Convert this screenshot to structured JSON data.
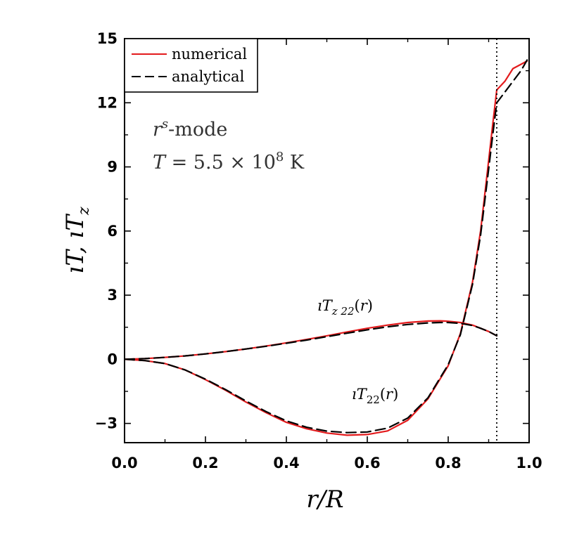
{
  "chart_data": {
    "type": "line",
    "xlabel": "r/R",
    "ylabel": "ıT, ıTz",
    "xlim": [
      0.0,
      1.0
    ],
    "ylim": [
      -3.9,
      15
    ],
    "x_ticks": [
      "0.0",
      "0.2",
      "0.4",
      "0.6",
      "0.8",
      "1.0"
    ],
    "y_ticks": [
      "−3",
      "0",
      "3",
      "6",
      "9",
      "12",
      "15"
    ],
    "x_tick_values": [
      0.0,
      0.2,
      0.4,
      0.6,
      0.8,
      1.0
    ],
    "y_tick_values": [
      -3,
      0,
      3,
      6,
      9,
      12,
      15
    ],
    "grid": false,
    "legend_position": "top-left",
    "legend": [
      {
        "name": "numerical",
        "color": "#e31a1c",
        "style": "solid"
      },
      {
        "name": "analytical",
        "color": "#000000",
        "style": "dashed"
      }
    ],
    "annotations": {
      "mode": "r^s-mode",
      "temperature": "T = 5.5 × 10^8 K",
      "curve_label_tz": "ıTz 22(r)",
      "curve_label_t": "ıT22(r)"
    },
    "vertical_line": {
      "x": 0.92,
      "style": "dotted"
    },
    "series": [
      {
        "name": "numerical",
        "curve": "ıT22(r)",
        "color": "#e31a1c",
        "style": "solid",
        "x": [
          0.0,
          0.05,
          0.1,
          0.15,
          0.2,
          0.25,
          0.3,
          0.35,
          0.4,
          0.45,
          0.5,
          0.55,
          0.6,
          0.65,
          0.7,
          0.75,
          0.8,
          0.83,
          0.86,
          0.88,
          0.9,
          0.91,
          0.92,
          0.94,
          0.96,
          0.98,
          0.995
        ],
        "y": [
          0.0,
          -0.06,
          -0.2,
          -0.5,
          -0.95,
          -1.45,
          -2.0,
          -2.5,
          -2.95,
          -3.25,
          -3.45,
          -3.55,
          -3.52,
          -3.35,
          -2.85,
          -1.85,
          -0.3,
          1.2,
          3.6,
          6.0,
          9.3,
          11.0,
          12.6,
          13.0,
          13.6,
          13.8,
          13.95
        ]
      },
      {
        "name": "analytical",
        "curve": "ıT22(r)",
        "color": "#000000",
        "style": "dashed",
        "x": [
          0.0,
          0.05,
          0.1,
          0.15,
          0.2,
          0.25,
          0.3,
          0.35,
          0.4,
          0.45,
          0.5,
          0.55,
          0.6,
          0.65,
          0.7,
          0.75,
          0.8,
          0.83,
          0.86,
          0.88,
          0.9,
          0.91,
          0.92,
          0.94,
          0.96,
          0.98,
          0.995
        ],
        "y": [
          0.0,
          -0.06,
          -0.2,
          -0.5,
          -0.93,
          -1.42,
          -1.95,
          -2.45,
          -2.88,
          -3.18,
          -3.36,
          -3.43,
          -3.4,
          -3.22,
          -2.75,
          -1.8,
          -0.25,
          1.15,
          3.5,
          5.8,
          8.9,
          10.5,
          12.0,
          12.5,
          13.0,
          13.5,
          14.0
        ]
      },
      {
        "name": "numerical",
        "curve": "ıTz 22(r)",
        "color": "#e31a1c",
        "style": "solid",
        "x": [
          0.0,
          0.05,
          0.1,
          0.15,
          0.2,
          0.25,
          0.3,
          0.35,
          0.4,
          0.45,
          0.5,
          0.55,
          0.6,
          0.65,
          0.7,
          0.75,
          0.78,
          0.8,
          0.83,
          0.86,
          0.88,
          0.9,
          0.92
        ],
        "y": [
          0.0,
          0.03,
          0.09,
          0.16,
          0.25,
          0.36,
          0.48,
          0.62,
          0.77,
          0.93,
          1.1,
          1.28,
          1.45,
          1.6,
          1.72,
          1.79,
          1.8,
          1.78,
          1.72,
          1.6,
          1.45,
          1.3,
          1.1
        ]
      },
      {
        "name": "analytical",
        "curve": "ıTz 22(r)",
        "color": "#000000",
        "style": "dashed",
        "x": [
          0.0,
          0.05,
          0.1,
          0.15,
          0.2,
          0.25,
          0.3,
          0.35,
          0.4,
          0.45,
          0.5,
          0.55,
          0.6,
          0.65,
          0.7,
          0.75,
          0.78,
          0.8,
          0.83,
          0.86,
          0.88,
          0.9,
          0.92
        ],
        "y": [
          0.0,
          0.03,
          0.09,
          0.16,
          0.25,
          0.36,
          0.48,
          0.61,
          0.75,
          0.9,
          1.06,
          1.22,
          1.38,
          1.52,
          1.63,
          1.7,
          1.72,
          1.72,
          1.68,
          1.58,
          1.45,
          1.3,
          1.1
        ]
      }
    ]
  }
}
